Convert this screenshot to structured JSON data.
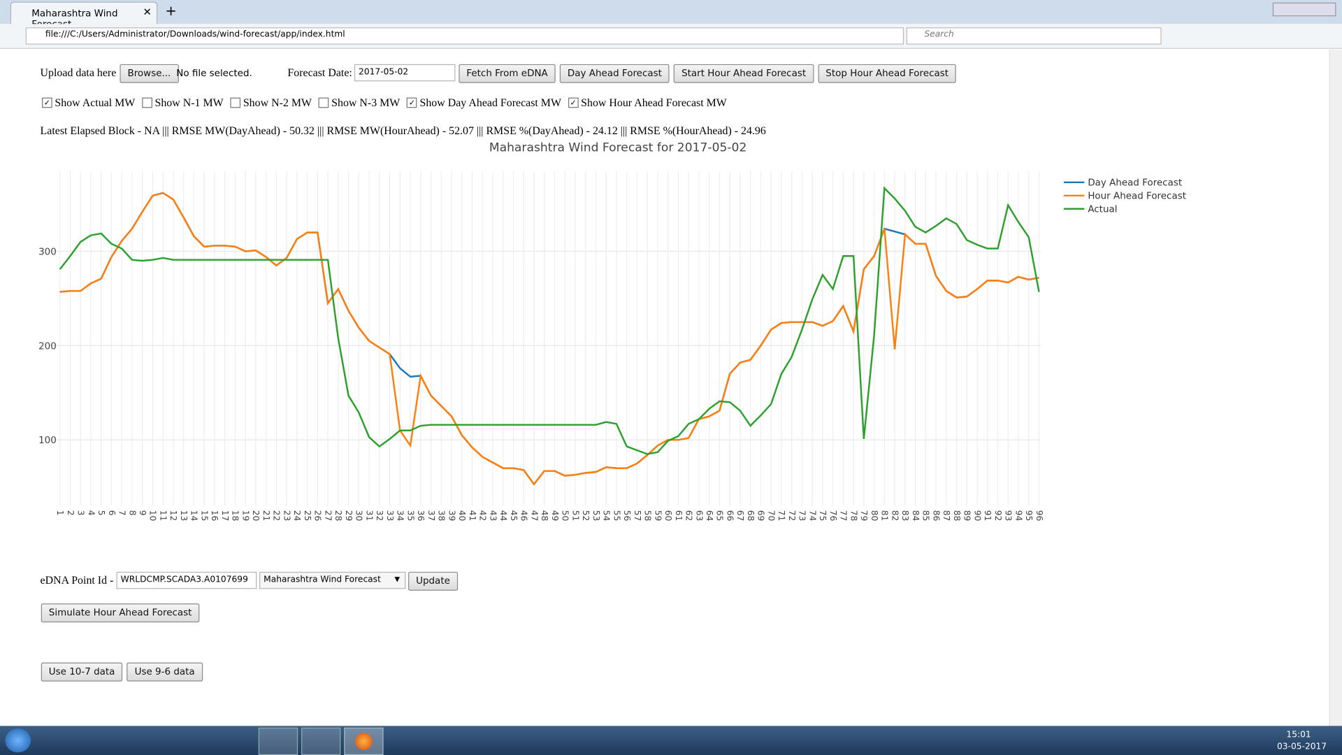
{
  "browser": {
    "tab_title": "Maharashtra Wind Forecast",
    "url": "file:///C:/Users/Administrator/Downloads/wind-forecast/app/index.html",
    "search_placeholder": "Search"
  },
  "form": {
    "upload_label": "Upload data here",
    "browse_button": "Browse...",
    "file_status": "No file selected.",
    "date_label": "Forecast Date:",
    "date_value": "2017-05-02",
    "buttons": [
      "Fetch From eDNA",
      "Day Ahead Forecast",
      "Start Hour Ahead Forecast",
      "Stop Hour Ahead Forecast"
    ],
    "checkboxes": [
      {
        "label": "Show Actual MW",
        "checked": true
      },
      {
        "label": "Show N-1 MW",
        "checked": false
      },
      {
        "label": "Show N-2 MW",
        "checked": false
      },
      {
        "label": "Show N-3 MW",
        "checked": false
      },
      {
        "label": "Show Day Ahead Forecast MW",
        "checked": true
      },
      {
        "label": "Show Hour Ahead Forecast MW",
        "checked": true
      }
    ],
    "status_line": "Latest Elapsed Block - NA ||| RMSE MW(DayAhead) - 50.32 ||| RMSE MW(HourAhead) - 52.07 ||| RMSE %(DayAhead) - 24.12 ||| RMSE %(HourAhead) - 24.96"
  },
  "chart_data": {
    "type": "line",
    "title": "Maharashtra Wind Forecast for 2017-05-02",
    "categories": [
      1,
      2,
      3,
      4,
      5,
      6,
      7,
      8,
      9,
      10,
      11,
      12,
      13,
      14,
      15,
      16,
      17,
      18,
      19,
      20,
      21,
      22,
      23,
      24,
      25,
      26,
      27,
      28,
      29,
      30,
      31,
      32,
      33,
      34,
      35,
      36,
      37,
      38,
      39,
      40,
      41,
      42,
      43,
      44,
      45,
      46,
      47,
      48,
      49,
      50,
      51,
      52,
      53,
      54,
      55,
      56,
      57,
      58,
      59,
      60,
      61,
      62,
      63,
      64,
      65,
      66,
      67,
      68,
      69,
      70,
      71,
      72,
      73,
      74,
      75,
      76,
      77,
      78,
      79,
      80,
      81,
      82,
      83,
      84,
      85,
      86,
      87,
      88,
      89,
      90,
      91,
      92,
      93,
      94,
      95,
      96
    ],
    "series": [
      {
        "name": "Day Ahead Forecast",
        "color": "#1f77b4",
        "values": [
          257,
          258,
          258,
          266,
          271,
          294,
          311,
          324,
          342,
          359,
          362,
          355,
          336,
          316,
          305,
          306,
          306,
          305,
          300,
          301,
          294,
          285,
          293,
          313,
          320,
          320,
          245,
          260,
          237,
          219,
          205,
          198,
          191,
          176,
          167,
          168,
          147,
          136,
          125,
          105,
          92,
          82,
          76,
          70,
          70,
          68,
          53,
          67,
          67,
          62,
          63,
          65,
          66,
          71,
          70,
          70,
          75,
          84,
          94,
          100,
          100,
          102,
          122,
          125,
          131,
          170,
          182,
          185,
          200,
          217,
          224,
          225,
          225,
          225,
          221,
          226,
          242,
          215,
          281,
          295,
          324,
          321,
          318,
          308,
          308,
          274,
          258,
          251,
          252,
          260,
          269,
          269,
          267,
          273,
          270,
          272
        ]
      },
      {
        "name": "Hour Ahead Forecast",
        "color": "#ff7f0e",
        "values": [
          257,
          258,
          258,
          266,
          271,
          294,
          311,
          324,
          342,
          359,
          362,
          355,
          336,
          316,
          305,
          306,
          306,
          305,
          300,
          301,
          294,
          285,
          293,
          313,
          320,
          320,
          245,
          260,
          237,
          219,
          205,
          198,
          191,
          110,
          94,
          168,
          147,
          136,
          125,
          105,
          92,
          82,
          76,
          70,
          70,
          68,
          53,
          67,
          67,
          62,
          63,
          65,
          66,
          71,
          70,
          70,
          75,
          84,
          94,
          100,
          100,
          102,
          122,
          125,
          131,
          170,
          182,
          185,
          200,
          217,
          224,
          225,
          225,
          225,
          221,
          226,
          242,
          215,
          281,
          295,
          324,
          196,
          318,
          308,
          308,
          274,
          258,
          251,
          252,
          260,
          269,
          269,
          267,
          273,
          270,
          272
        ]
      },
      {
        "name": "Actual",
        "color": "#2ca02c",
        "values": [
          281,
          295,
          310,
          317,
          319,
          308,
          303,
          291,
          290,
          291,
          293,
          291,
          291,
          291,
          291,
          291,
          291,
          291,
          291,
          291,
          291,
          291,
          291,
          291,
          291,
          291,
          291,
          208,
          147,
          129,
          103,
          93,
          101,
          110,
          110,
          115,
          116,
          116,
          116,
          116,
          116,
          116,
          116,
          116,
          116,
          116,
          116,
          116,
          116,
          116,
          116,
          116,
          116,
          119,
          117,
          93,
          89,
          85,
          87,
          99,
          104,
          117,
          122,
          133,
          141,
          140,
          131,
          115,
          126,
          138,
          170,
          188,
          217,
          249,
          275,
          260,
          295,
          295,
          101,
          211,
          367,
          356,
          343,
          326,
          320,
          327,
          335,
          329,
          312,
          307,
          303,
          303,
          349,
          331,
          315,
          257
        ]
      }
    ],
    "ylim": [
      30,
      385
    ],
    "yticks": [
      100,
      200,
      300
    ],
    "grid": true,
    "legend": "right"
  },
  "edna": {
    "label": "eDNA Point Id -",
    "point_id": "WRLDCMP.SCADA3.A0107699",
    "select": "Maharashtra Wind Forecast",
    "update_button": "Update",
    "simulate_button": "Simulate Hour Ahead Forecast",
    "data_buttons": [
      "Use 10-7 data",
      "Use 9-6 data"
    ]
  },
  "taskbar": {
    "time": "15:01",
    "date": "03-05-2017"
  }
}
